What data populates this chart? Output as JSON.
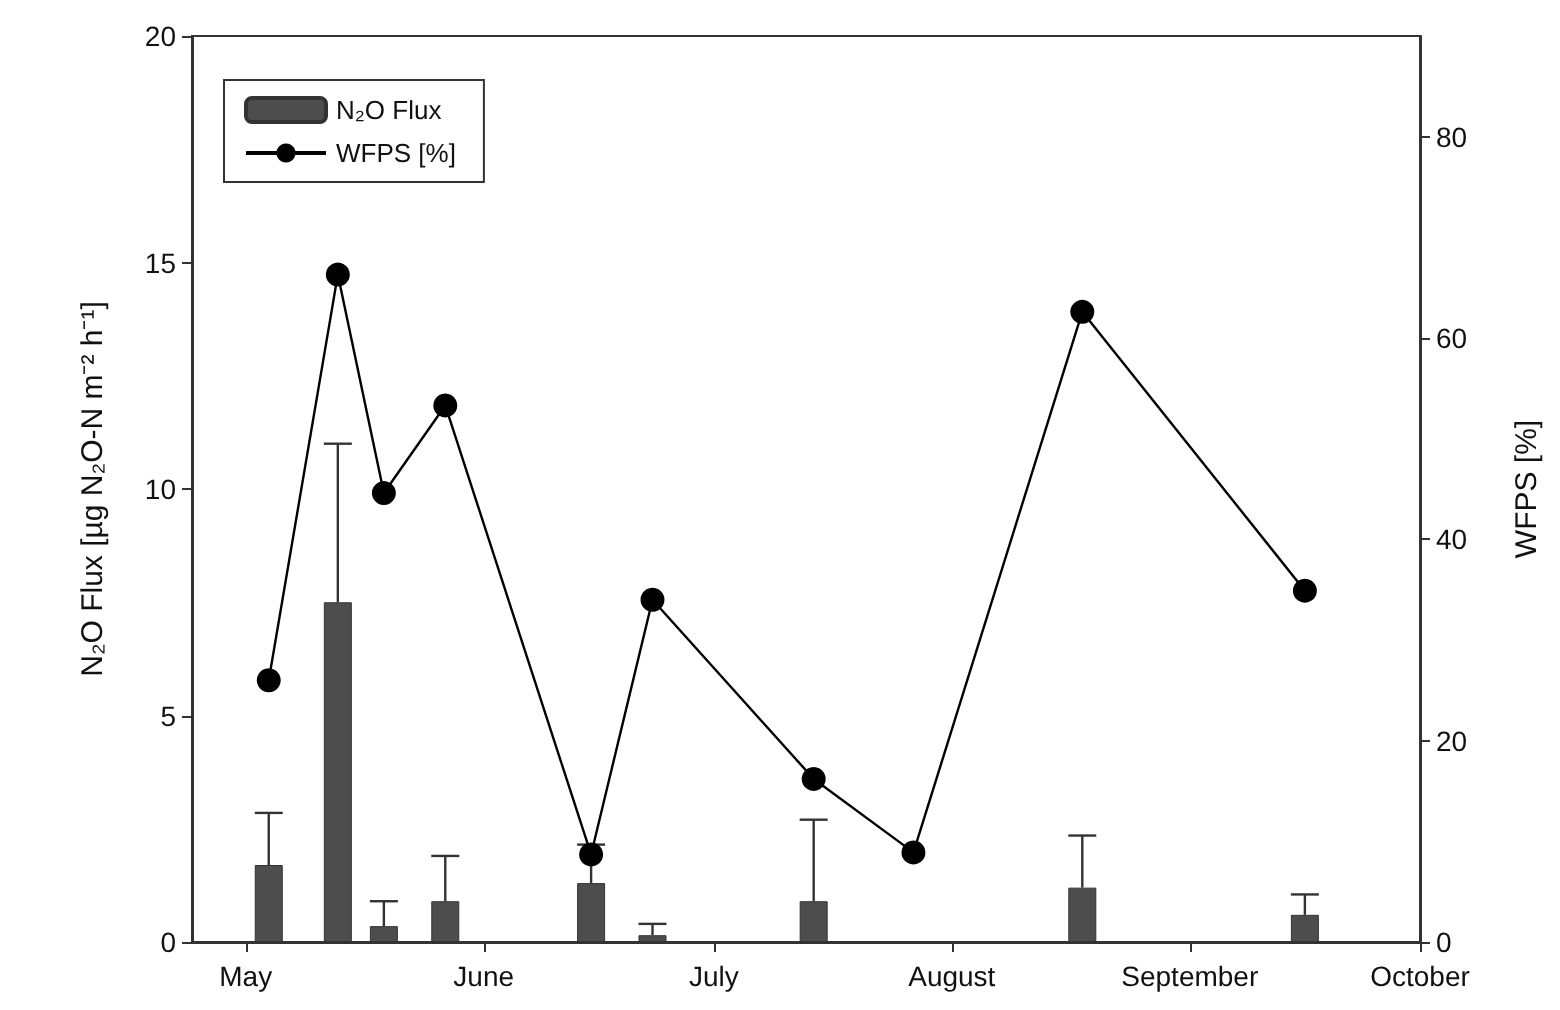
{
  "chart_data": {
    "type": "bar",
    "ylabel": "N₂O Flux [µg N₂O-N m⁻² h⁻¹]",
    "y2label": "WFPS [%]",
    "x": [
      "--05-04",
      "--05-13",
      "--05-19",
      "--05-27",
      "--06-15",
      "--06-23",
      "--07-14",
      "--07-27",
      "--08-18",
      "--09-16"
    ],
    "xlim": [
      "--04-24",
      "--10-01"
    ],
    "xticks": [
      {
        "value": "--05-01",
        "label": "May"
      },
      {
        "value": "--06-01",
        "label": "June"
      },
      {
        "value": "--07-01",
        "label": "July"
      },
      {
        "value": "--08-01",
        "label": "August"
      },
      {
        "value": "--09-01",
        "label": "September"
      },
      {
        "value": "--10-01",
        "label": "October"
      }
    ],
    "ylim": [
      0,
      20
    ],
    "yticks": [
      0,
      5,
      10,
      15,
      20
    ],
    "y2lim": [
      0,
      90
    ],
    "y2ticks": [
      0,
      20,
      40,
      60,
      80
    ],
    "series": [
      {
        "name": "N₂O Flux",
        "color": "#4d4d4d",
        "values": [
          1.7,
          7.5,
          0.35,
          0.9,
          1.3,
          0.15,
          0.9,
          null,
          1.2,
          0.6
        ],
        "errors": [
          [
            1.7,
            2.85
          ],
          [
            7.5,
            11.0
          ],
          [
            0.35,
            0.9
          ],
          [
            0.9,
            1.9
          ],
          [
            1.3,
            2.15
          ],
          [
            0.15,
            0.4
          ],
          [
            0.9,
            2.7
          ],
          null,
          [
            1.2,
            2.35
          ],
          [
            0.6,
            1.05
          ]
        ]
      },
      {
        "name": "WFPS [%]",
        "type": "line",
        "axis": "y2",
        "color": "#000000",
        "marker": "circle",
        "values": [
          26,
          66.3,
          44.6,
          53.3,
          8.7,
          34,
          16.2,
          8.9,
          62.6,
          34.9
        ]
      }
    ],
    "legend": "top left",
    "grid": false
  }
}
